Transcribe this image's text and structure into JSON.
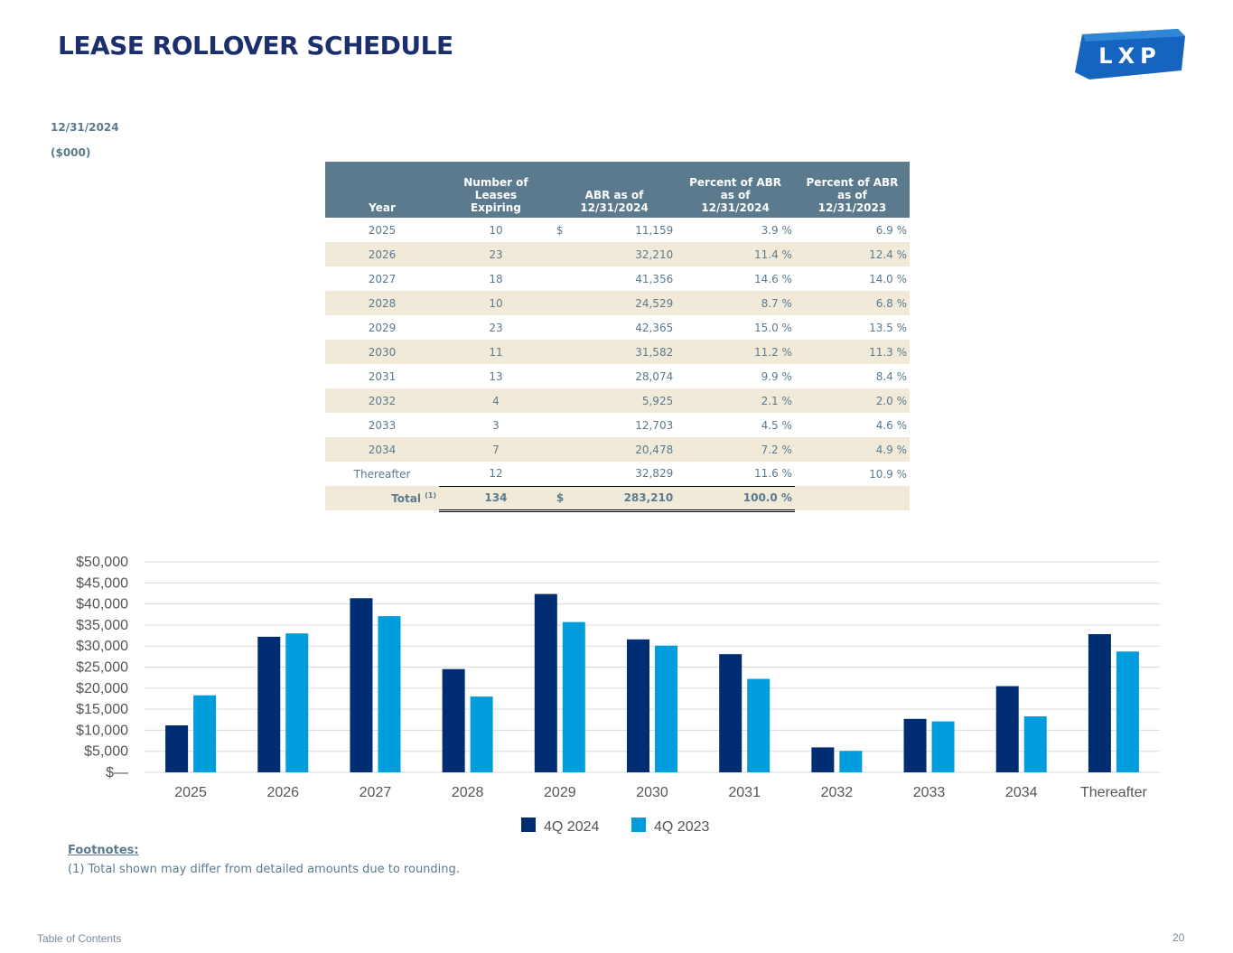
{
  "header": {
    "title": "LEASE ROLLOVER SCHEDULE",
    "logo_text": "LXP",
    "date": "12/31/2024",
    "unit": "($000)"
  },
  "table": {
    "headers": {
      "year": "Year",
      "num_lines": [
        "Number of",
        "Leases",
        "Expiring"
      ],
      "abr_lines": [
        "ABR as of",
        "12/31/2024"
      ],
      "pct24_lines": [
        "Percent of ABR",
        "as of",
        "12/31/2024"
      ],
      "pct23_lines": [
        "Percent of ABR",
        "as of",
        "12/31/2023"
      ]
    },
    "rows": [
      {
        "year": "2025",
        "num": "10",
        "cur": "$",
        "abr": "11,159",
        "pct24": "3.9 %",
        "pct23": "6.9 %"
      },
      {
        "year": "2026",
        "num": "23",
        "cur": "",
        "abr": "32,210",
        "pct24": "11.4 %",
        "pct23": "12.4 %"
      },
      {
        "year": "2027",
        "num": "18",
        "cur": "",
        "abr": "41,356",
        "pct24": "14.6 %",
        "pct23": "14.0 %"
      },
      {
        "year": "2028",
        "num": "10",
        "cur": "",
        "abr": "24,529",
        "pct24": "8.7 %",
        "pct23": "6.8 %"
      },
      {
        "year": "2029",
        "num": "23",
        "cur": "",
        "abr": "42,365",
        "pct24": "15.0 %",
        "pct23": "13.5 %"
      },
      {
        "year": "2030",
        "num": "11",
        "cur": "",
        "abr": "31,582",
        "pct24": "11.2 %",
        "pct23": "11.3 %"
      },
      {
        "year": "2031",
        "num": "13",
        "cur": "",
        "abr": "28,074",
        "pct24": "9.9 %",
        "pct23": "8.4 %"
      },
      {
        "year": "2032",
        "num": "4",
        "cur": "",
        "abr": "5,925",
        "pct24": "2.1 %",
        "pct23": "2.0 %"
      },
      {
        "year": "2033",
        "num": "3",
        "cur": "",
        "abr": "12,703",
        "pct24": "4.5 %",
        "pct23": "4.6 %"
      },
      {
        "year": "2034",
        "num": "7",
        "cur": "",
        "abr": "20,478",
        "pct24": "7.2 %",
        "pct23": "4.9 %"
      },
      {
        "year": "Thereafter",
        "num": "12",
        "cur": "",
        "abr": "32,829",
        "pct24": "11.6 %",
        "pct23": "10.9 %"
      }
    ],
    "total": {
      "label": "Total",
      "footnote": "(1)",
      "num": "134",
      "cur": "$",
      "abr": "283,210",
      "pct24": "100.0 %"
    }
  },
  "chart_data": {
    "type": "bar",
    "categories": [
      "2025",
      "2026",
      "2027",
      "2028",
      "2029",
      "2030",
      "2031",
      "2032",
      "2033",
      "2034",
      "Thereafter"
    ],
    "series": [
      {
        "name": "4Q 2024",
        "color": "#002d72",
        "values": [
          11159,
          32210,
          41356,
          24529,
          42365,
          31582,
          28074,
          5925,
          12703,
          20478,
          32829
        ]
      },
      {
        "name": "4Q 2023",
        "color": "#009ddc",
        "values": [
          18300,
          33000,
          37100,
          18000,
          35700,
          30100,
          22200,
          5100,
          12100,
          13300,
          28700
        ]
      }
    ],
    "ylim": [
      0,
      50000
    ],
    "yticks": [
      0,
      5000,
      10000,
      15000,
      20000,
      25000,
      30000,
      35000,
      40000,
      45000,
      50000
    ],
    "ytick_labels": [
      "$—",
      "$5,000",
      "$10,000",
      "$15,000",
      "$20,000",
      "$25,000",
      "$30,000",
      "$35,000",
      "$40,000",
      "$45,000",
      "$50,000"
    ],
    "grid": true,
    "legend": "bottom-center"
  },
  "footnotes": {
    "title": "Footnotes:",
    "items": [
      "(1)  Total shown may differ from detailed amounts due to rounding."
    ]
  },
  "footer": {
    "toc": "Table of Contents",
    "page": "20"
  }
}
